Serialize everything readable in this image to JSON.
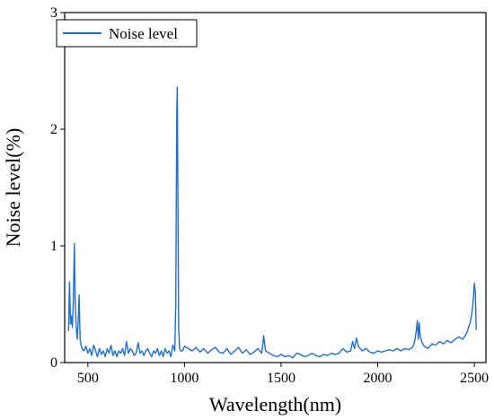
{
  "chart_data": {
    "type": "line",
    "xlabel": "Wavelength(nm)",
    "ylabel": "Noise level(%)",
    "xlim": [
      380,
      2560
    ],
    "ylim": [
      0,
      3
    ],
    "xticks": [
      500,
      1000,
      1500,
      2000,
      2500
    ],
    "yticks": [
      0,
      1,
      2,
      3
    ],
    "grid": false,
    "legend_position": "top-left",
    "series": [
      {
        "name": "Noise level",
        "color": "#1f6fd1",
        "x": [
          400,
          405,
          410,
          415,
          420,
          425,
          430,
          435,
          440,
          445,
          450,
          455,
          460,
          465,
          470,
          480,
          490,
          500,
          510,
          520,
          530,
          540,
          550,
          560,
          570,
          580,
          590,
          600,
          610,
          620,
          630,
          640,
          650,
          660,
          670,
          680,
          690,
          700,
          710,
          720,
          730,
          740,
          750,
          760,
          770,
          780,
          790,
          800,
          810,
          820,
          830,
          840,
          850,
          860,
          870,
          880,
          890,
          900,
          910,
          920,
          930,
          940,
          950,
          955,
          960,
          963,
          966,
          970,
          975,
          980,
          990,
          1000,
          1020,
          1040,
          1060,
          1080,
          1100,
          1120,
          1140,
          1160,
          1180,
          1200,
          1220,
          1240,
          1260,
          1280,
          1300,
          1320,
          1340,
          1360,
          1380,
          1400,
          1405,
          1410,
          1415,
          1420,
          1440,
          1460,
          1480,
          1500,
          1520,
          1540,
          1560,
          1580,
          1600,
          1620,
          1640,
          1660,
          1680,
          1700,
          1720,
          1740,
          1760,
          1780,
          1800,
          1820,
          1840,
          1860,
          1870,
          1880,
          1890,
          1900,
          1910,
          1920,
          1940,
          1960,
          1980,
          2000,
          2020,
          2040,
          2060,
          2080,
          2100,
          2120,
          2140,
          2160,
          2180,
          2190,
          2200,
          2205,
          2210,
          2215,
          2220,
          2230,
          2240,
          2260,
          2280,
          2300,
          2320,
          2340,
          2360,
          2380,
          2400,
          2420,
          2440,
          2460,
          2470,
          2480,
          2490,
          2495,
          2500,
          2505,
          2510
        ],
        "y": [
          0.27,
          0.69,
          0.33,
          0.4,
          0.3,
          0.55,
          1.02,
          0.5,
          0.3,
          0.2,
          0.36,
          0.58,
          0.2,
          0.15,
          0.12,
          0.1,
          0.14,
          0.08,
          0.12,
          0.06,
          0.15,
          0.1,
          0.05,
          0.12,
          0.07,
          0.1,
          0.05,
          0.12,
          0.08,
          0.15,
          0.06,
          0.1,
          0.05,
          0.1,
          0.08,
          0.12,
          0.06,
          0.18,
          0.08,
          0.12,
          0.1,
          0.06,
          0.08,
          0.17,
          0.08,
          0.1,
          0.06,
          0.1,
          0.12,
          0.08,
          0.05,
          0.1,
          0.08,
          0.12,
          0.06,
          0.1,
          0.05,
          0.12,
          0.08,
          0.1,
          0.05,
          0.15,
          0.1,
          0.5,
          2.15,
          2.36,
          1.4,
          0.3,
          0.12,
          0.1,
          0.1,
          0.14,
          0.12,
          0.1,
          0.13,
          0.09,
          0.12,
          0.08,
          0.11,
          0.13,
          0.09,
          0.08,
          0.12,
          0.07,
          0.1,
          0.13,
          0.08,
          0.11,
          0.07,
          0.09,
          0.12,
          0.08,
          0.15,
          0.23,
          0.15,
          0.1,
          0.08,
          0.06,
          0.05,
          0.07,
          0.05,
          0.06,
          0.04,
          0.08,
          0.07,
          0.05,
          0.06,
          0.08,
          0.06,
          0.05,
          0.07,
          0.06,
          0.08,
          0.07,
          0.08,
          0.12,
          0.09,
          0.1,
          0.18,
          0.12,
          0.21,
          0.14,
          0.12,
          0.1,
          0.12,
          0.09,
          0.08,
          0.1,
          0.09,
          0.1,
          0.11,
          0.1,
          0.12,
          0.1,
          0.12,
          0.11,
          0.13,
          0.17,
          0.28,
          0.36,
          0.2,
          0.34,
          0.22,
          0.17,
          0.14,
          0.12,
          0.16,
          0.15,
          0.18,
          0.16,
          0.19,
          0.17,
          0.2,
          0.22,
          0.2,
          0.25,
          0.3,
          0.35,
          0.45,
          0.55,
          0.68,
          0.6,
          0.28
        ]
      }
    ]
  }
}
